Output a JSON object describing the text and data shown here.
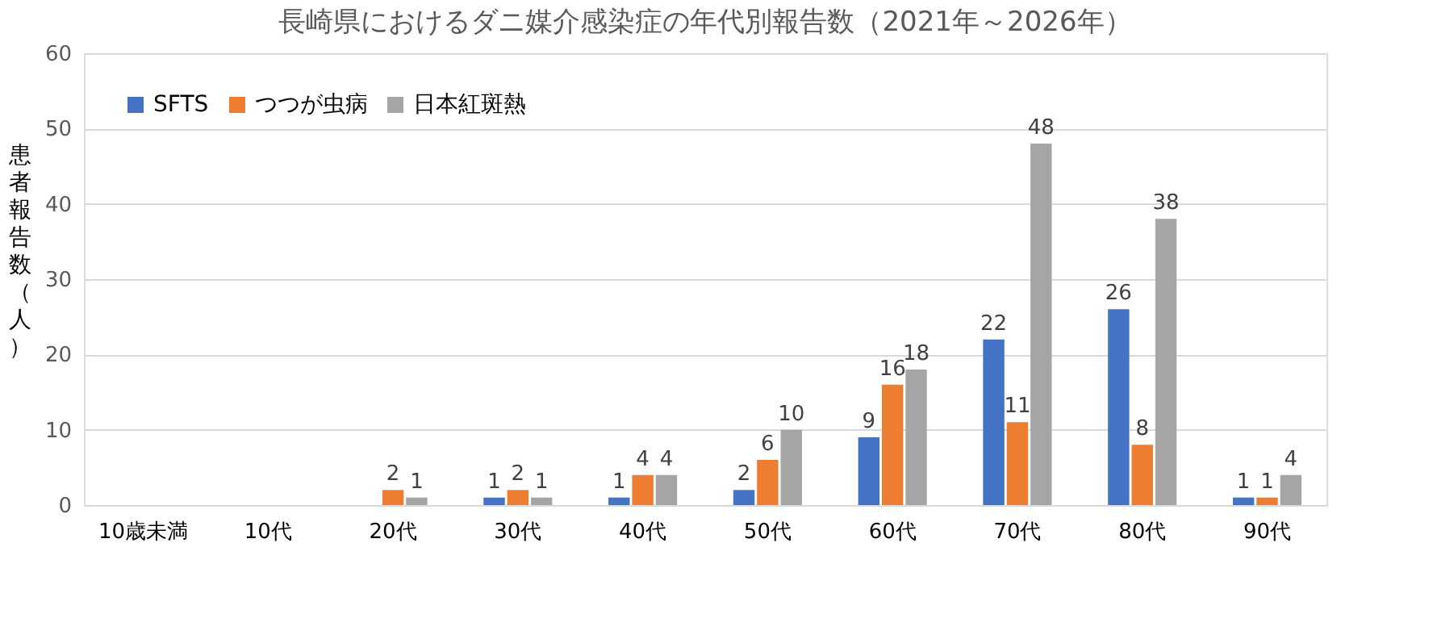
{
  "chart_data": {
    "type": "bar",
    "title": "長崎県におけるダニ媒介感染症の年代別報告数（2021年～2026年）",
    "ylabel": "患者報告数（人）",
    "categories": [
      "10歳未満",
      "10代",
      "20代",
      "30代",
      "40代",
      "50代",
      "60代",
      "70代",
      "80代",
      "90代"
    ],
    "series": [
      {
        "name": "SFTS",
        "color": "#4472c4",
        "values": [
          null,
          null,
          null,
          1,
          1,
          2,
          9,
          22,
          26,
          1
        ]
      },
      {
        "name": "つつが虫病",
        "color": "#ed7d31",
        "values": [
          null,
          null,
          2,
          2,
          4,
          6,
          16,
          11,
          8,
          1
        ]
      },
      {
        "name": "日本紅斑熱",
        "color": "#a5a5a5",
        "values": [
          null,
          null,
          1,
          1,
          4,
          10,
          18,
          48,
          38,
          4
        ]
      }
    ],
    "ylim": [
      0,
      60
    ],
    "yticks": [
      0,
      10,
      20,
      30,
      40,
      50,
      60
    ],
    "grid": "y",
    "legend": "top left",
    "data_labels": true
  }
}
